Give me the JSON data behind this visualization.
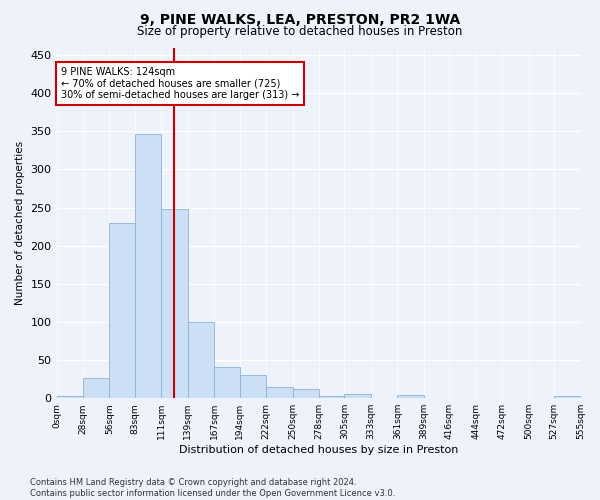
{
  "title1": "9, PINE WALKS, LEA, PRESTON, PR2 1WA",
  "title2": "Size of property relative to detached houses in Preston",
  "xlabel": "Distribution of detached houses by size in Preston",
  "ylabel": "Number of detached properties",
  "bar_color": "#ccdff5",
  "bar_edge_color": "#8ab4d8",
  "bins": [
    0,
    28,
    56,
    83,
    111,
    139,
    167,
    194,
    222,
    250,
    278,
    305,
    333,
    361,
    389,
    416,
    444,
    472,
    500,
    527,
    555
  ],
  "values": [
    3,
    27,
    230,
    347,
    248,
    100,
    41,
    30,
    15,
    12,
    3,
    5,
    0,
    4,
    0,
    0,
    0,
    0,
    0,
    3
  ],
  "tick_labels": [
    "0sqm",
    "28sqm",
    "56sqm",
    "83sqm",
    "111sqm",
    "139sqm",
    "167sqm",
    "194sqm",
    "222sqm",
    "250sqm",
    "278sqm",
    "305sqm",
    "333sqm",
    "361sqm",
    "389sqm",
    "416sqm",
    "444sqm",
    "472sqm",
    "500sqm",
    "527sqm",
    "555sqm"
  ],
  "vline_x": 124,
  "vline_color": "#cc0000",
  "annotation_text": "9 PINE WALKS: 124sqm\n← 70% of detached houses are smaller (725)\n30% of semi-detached houses are larger (313) →",
  "annotation_box_color": "#ffffff",
  "annotation_box_edge": "#cc0000",
  "ylim": [
    0,
    460
  ],
  "yticks": [
    0,
    50,
    100,
    150,
    200,
    250,
    300,
    350,
    400,
    450
  ],
  "footer_text": "Contains HM Land Registry data © Crown copyright and database right 2024.\nContains public sector information licensed under the Open Government Licence v3.0.",
  "background_color": "#eef2fa",
  "grid_color": "#ffffff",
  "title1_fontsize": 10,
  "title2_fontsize": 8.5
}
